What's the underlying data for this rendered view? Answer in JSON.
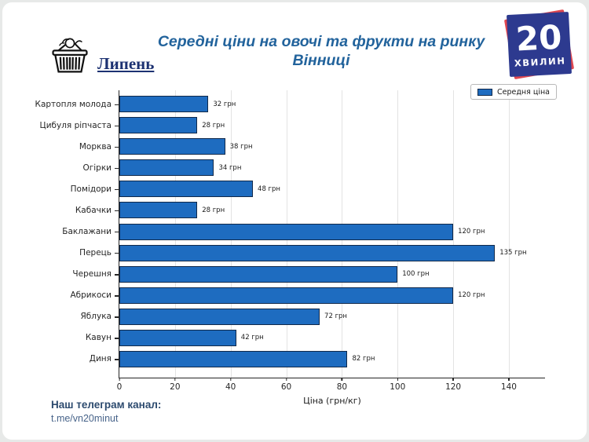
{
  "header": {
    "month_label": "Липень",
    "title_line1": "Середні ціни на овочі та фрукти на ринку",
    "title_line2": "Вінниці",
    "logo_number": "20",
    "logo_word": "ХВИЛИН"
  },
  "legend": {
    "label": "Середня ціна"
  },
  "chart_data": {
    "type": "bar",
    "orientation": "horizontal",
    "title": "Середні ціни на овочі та фрукти на ринку Вінниці",
    "categories": [
      "Картопля молода",
      "Цибуля ріпчаста",
      "Морква",
      "Огірки",
      "Помідори",
      "Кабачки",
      "Баклажани",
      "Перець",
      "Черешня",
      "Абрикоси",
      "Яблука",
      "Кавун",
      "Диня"
    ],
    "values": [
      32,
      28,
      38,
      34,
      48,
      28,
      120,
      135,
      100,
      120,
      72,
      42,
      82
    ],
    "value_suffix": " грн",
    "xlabel": "Ціна (грн/кг)",
    "ylabel": "",
    "xticks": [
      0,
      20,
      40,
      60,
      80,
      100,
      120,
      140
    ],
    "xlim": [
      0,
      153
    ],
    "grid": true,
    "legend_entries": [
      "Середня ціна"
    ],
    "legend_position": "upper right",
    "bar_color": "#1e6cc0",
    "bar_edge_color": "#11294a"
  },
  "footer": {
    "label": "Наш телеграм канал:",
    "link": "t.me/vn20minut"
  },
  "colors": {
    "title": "#22639c",
    "month_label": "#1d3272",
    "logo_blue": "#2d3a8f",
    "logo_red": "#e0474f",
    "background": "#ffffff",
    "gridline": "#e3e3e3"
  }
}
